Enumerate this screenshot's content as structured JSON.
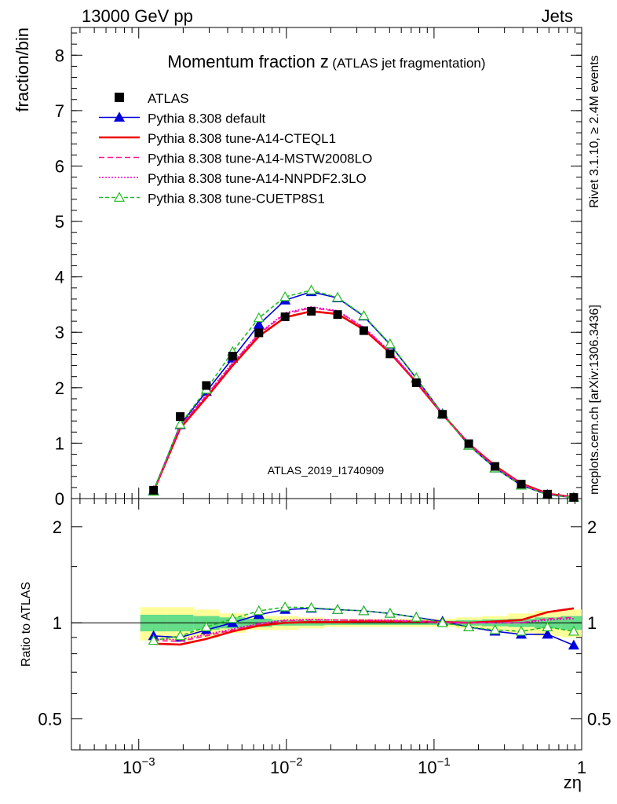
{
  "header": {
    "energy_label": "13000 GeV pp",
    "process_label": "Jets",
    "title_main": "Momentum fraction z",
    "title_sub": "(ATLAS jet fragmentation)",
    "analysis_id": "ATLAS_2019_I1740909",
    "side_rivet": "Rivet 3.1.10, ≥ 2.4M events",
    "side_mcplots": "mcplots.cern.ch [arXiv:1306.3436]"
  },
  "chart_data": [
    {
      "type": "line",
      "panel": "main",
      "ylabel": "fraction/bin",
      "xlabel": "zη",
      "xscale": "log",
      "xlim": [
        0.00035,
        1.0
      ],
      "ylim": [
        0,
        8.5
      ],
      "yticks": [
        {
          "v": 0,
          "label": "0"
        },
        {
          "v": 1,
          "label": "1"
        },
        {
          "v": 2,
          "label": "2"
        },
        {
          "v": 3,
          "label": "3"
        },
        {
          "v": 4,
          "label": "4"
        },
        {
          "v": 5,
          "label": "5"
        },
        {
          "v": 6,
          "label": "6"
        },
        {
          "v": 7,
          "label": "7"
        },
        {
          "v": 8,
          "label": "8"
        }
      ],
      "x": [
        0.00126,
        0.00191,
        0.00287,
        0.00432,
        0.00651,
        0.0098,
        0.01476,
        0.02222,
        0.03345,
        0.05036,
        0.07583,
        0.1142,
        0.1719,
        0.2588,
        0.3897,
        0.5868,
        0.8834
      ],
      "data": {
        "name": "ATLAS",
        "color": "#000000",
        "values": [
          0.15,
          1.48,
          2.04,
          2.57,
          2.99,
          3.28,
          3.38,
          3.32,
          3.03,
          2.61,
          2.09,
          1.52,
          0.99,
          0.58,
          0.26,
          0.08,
          0.02
        ]
      },
      "series": [
        {
          "name": "Pythia 8.308 default",
          "color": "#0000dd",
          "dash": "",
          "marker": "triangle-filled",
          "values": [
            0.14,
            1.33,
            1.93,
            2.53,
            3.14,
            3.58,
            3.73,
            3.62,
            3.29,
            2.78,
            2.17,
            1.53,
            0.96,
            0.55,
            0.24,
            0.07,
            0.02
          ]
        },
        {
          "name": "Pythia 8.308 tune-A14-CTEQL1",
          "color": "#ee0000",
          "dash": "",
          "marker": "none",
          "values": [
            0.13,
            1.27,
            1.82,
            2.4,
            2.93,
            3.27,
            3.38,
            3.33,
            3.05,
            2.63,
            2.1,
            1.52,
            0.99,
            0.59,
            0.27,
            0.09,
            0.023
          ]
        },
        {
          "name": "Pythia 8.308 tune-A14-MSTW2008LO",
          "color": "#ff1493",
          "dash": "7,4",
          "marker": "none",
          "values": [
            0.13,
            1.3,
            1.86,
            2.44,
            2.97,
            3.33,
            3.44,
            3.38,
            3.08,
            2.65,
            2.11,
            1.52,
            0.99,
            0.58,
            0.26,
            0.08,
            0.021
          ]
        },
        {
          "name": "Pythia 8.308 tune-A14-NNPDF2.3LO",
          "color": "#ee00cc",
          "dash": "2,2",
          "marker": "none",
          "values": [
            0.13,
            1.31,
            1.87,
            2.45,
            2.98,
            3.35,
            3.46,
            3.39,
            3.09,
            2.66,
            2.12,
            1.53,
            0.99,
            0.58,
            0.26,
            0.08,
            0.021
          ]
        },
        {
          "name": "Pythia 8.308 tune-CUETP8S1",
          "color": "#22bb22",
          "dash": "5,3",
          "marker": "triangle-open",
          "values": [
            0.13,
            1.34,
            1.97,
            2.65,
            3.26,
            3.64,
            3.76,
            3.63,
            3.3,
            2.79,
            2.18,
            1.52,
            0.96,
            0.55,
            0.24,
            0.07,
            0.019
          ]
        }
      ]
    },
    {
      "type": "line",
      "panel": "ratio",
      "ylabel": "Ratio to ATLAS",
      "xlabel": "zη",
      "xscale": "log",
      "yscale": "log",
      "xlim": [
        0.00035,
        1.0
      ],
      "ylim": [
        0.4,
        2.45
      ],
      "yticks": [
        {
          "v": 0.5,
          "label": "0.5"
        },
        {
          "v": 1,
          "label": "1"
        },
        {
          "v": 2,
          "label": "2"
        }
      ],
      "xticks": [
        {
          "v": 0.001,
          "base": "10",
          "exp": "−3"
        },
        {
          "v": 0.01,
          "base": "10",
          "exp": "−2"
        },
        {
          "v": 0.1,
          "base": "10",
          "exp": "−1"
        },
        {
          "v": 1,
          "base": "1",
          "exp": ""
        }
      ],
      "band_outer": {
        "color": "#ffff99",
        "lo": [
          0.88,
          0.88,
          0.9,
          0.93,
          0.95,
          0.95,
          0.96,
          0.97,
          0.97,
          0.97,
          0.97,
          0.97,
          0.96,
          0.95,
          0.93,
          0.91,
          0.9
        ],
        "hi": [
          1.12,
          1.12,
          1.1,
          1.07,
          1.05,
          1.05,
          1.04,
          1.03,
          1.03,
          1.03,
          1.03,
          1.03,
          1.04,
          1.05,
          1.07,
          1.09,
          1.1
        ]
      },
      "band_inner": {
        "color": "#66dd88",
        "lo": [
          0.94,
          0.94,
          0.95,
          0.96,
          0.97,
          0.98,
          0.98,
          0.985,
          0.985,
          0.985,
          0.985,
          0.985,
          0.98,
          0.975,
          0.97,
          0.96,
          0.95
        ],
        "hi": [
          1.06,
          1.06,
          1.05,
          1.04,
          1.03,
          1.02,
          1.02,
          1.015,
          1.015,
          1.015,
          1.015,
          1.015,
          1.02,
          1.025,
          1.03,
          1.04,
          1.05
        ]
      },
      "x": [
        0.00126,
        0.00191,
        0.00287,
        0.00432,
        0.00651,
        0.0098,
        0.01476,
        0.02222,
        0.03345,
        0.05036,
        0.07583,
        0.1142,
        0.1719,
        0.2588,
        0.3897,
        0.5868,
        0.8834
      ],
      "series": [
        {
          "name": "Pythia 8.308 default",
          "color": "#0000dd",
          "dash": "",
          "marker": "triangle-filled",
          "values": [
            0.91,
            0.9,
            0.95,
            1.0,
            1.06,
            1.1,
            1.11,
            1.1,
            1.09,
            1.07,
            1.04,
            1.01,
            0.97,
            0.94,
            0.92,
            0.92,
            0.85
          ]
        },
        {
          "name": "Pythia 8.308 tune-A14-CTEQL1",
          "color": "#ee0000",
          "dash": "",
          "marker": "none",
          "values": [
            0.86,
            0.855,
            0.89,
            0.94,
            0.98,
            1.0,
            1.005,
            1.005,
            1.01,
            1.01,
            1.01,
            1.005,
            1.0,
            1.01,
            1.02,
            1.08,
            1.11
          ]
        },
        {
          "name": "Pythia 8.308 tune-A14-MSTW2008LO",
          "color": "#ff1493",
          "dash": "7,4",
          "marker": "none",
          "values": [
            0.88,
            0.875,
            0.91,
            0.95,
            0.99,
            1.015,
            1.02,
            1.02,
            1.02,
            1.015,
            1.01,
            1.0,
            1.0,
            1.0,
            1.0,
            1.03,
            1.04
          ]
        },
        {
          "name": "Pythia 8.308 tune-A14-NNPDF2.3LO",
          "color": "#ee00cc",
          "dash": "2,2",
          "marker": "none",
          "values": [
            0.89,
            0.885,
            0.92,
            0.955,
            0.995,
            1.02,
            1.025,
            1.02,
            1.02,
            1.02,
            1.015,
            1.005,
            1.0,
            1.0,
            1.0,
            1.02,
            1.03
          ]
        },
        {
          "name": "Pythia 8.308 tune-CUETP8S1",
          "color": "#22bb22",
          "dash": "5,3",
          "marker": "triangle-open",
          "values": [
            0.88,
            0.91,
            0.97,
            1.03,
            1.09,
            1.12,
            1.115,
            1.1,
            1.09,
            1.07,
            1.04,
            1.0,
            0.97,
            0.95,
            0.94,
            0.97,
            0.94
          ]
        }
      ]
    }
  ]
}
